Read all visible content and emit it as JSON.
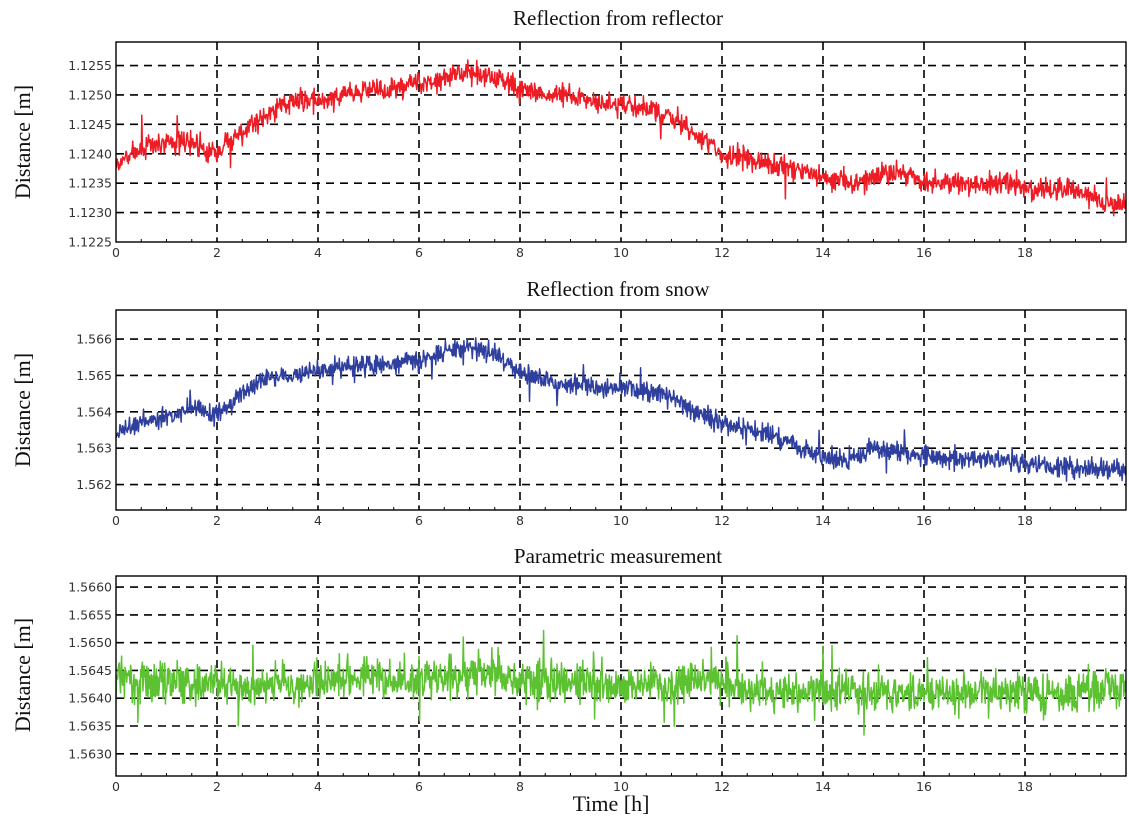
{
  "xlabel": "Time [h]",
  "chart_data": [
    {
      "type": "line",
      "title": "Reflection from reflector",
      "ylabel": "Distance [m]",
      "xlim": [
        0,
        20
      ],
      "ylim": [
        1.1225,
        1.1259
      ],
      "xticks": [
        0,
        2,
        4,
        6,
        8,
        10,
        12,
        14,
        16,
        18
      ],
      "xtick_labels": [
        "0",
        "2",
        "4",
        "6",
        "8",
        "10",
        "12",
        "14",
        "16",
        "18"
      ],
      "yticks": [
        1.1225,
        1.123,
        1.1235,
        1.124,
        1.1245,
        1.125,
        1.1255
      ],
      "ytick_labels": [
        "1.1225",
        "1.1230",
        "1.1235",
        "1.1240",
        "1.1245",
        "1.1250",
        "1.1255"
      ],
      "grid": true,
      "color": "#ee1c25",
      "series": [
        {
          "x": [
            0,
            0.5,
            1,
            1.5,
            2,
            2.5,
            3,
            3.5,
            4,
            4.5,
            5,
            5.5,
            6,
            6.5,
            7,
            7.5,
            8,
            8.5,
            9,
            9.5,
            10,
            10.5,
            11,
            11.5,
            12,
            12.5,
            13,
            13.5,
            14,
            14.5,
            15,
            15.5,
            16,
            16.5,
            17,
            17.5,
            18,
            18.5,
            19,
            19.5,
            20
          ],
          "values": [
            1.1238,
            1.1241,
            1.1242,
            1.1242,
            1.124,
            1.1244,
            1.1247,
            1.1249,
            1.1249,
            1.125,
            1.1251,
            1.1251,
            1.1252,
            1.1253,
            1.1254,
            1.1253,
            1.1251,
            1.125,
            1.125,
            1.1249,
            1.1248,
            1.1248,
            1.1246,
            1.1243,
            1.124,
            1.1239,
            1.1238,
            1.1237,
            1.1236,
            1.1235,
            1.1236,
            1.1237,
            1.1235,
            1.1235,
            1.1235,
            1.1235,
            1.1234,
            1.1234,
            1.1234,
            1.1232,
            1.1231
          ]
        }
      ]
    },
    {
      "type": "line",
      "title": "Reflection from snow",
      "ylabel": "Distance [m]",
      "xlim": [
        0,
        20
      ],
      "ylim": [
        1.5613,
        1.5668
      ],
      "xticks": [
        0,
        2,
        4,
        6,
        8,
        10,
        12,
        14,
        16,
        18
      ],
      "xtick_labels": [
        "0",
        "2",
        "4",
        "6",
        "8",
        "10",
        "12",
        "14",
        "16",
        "18"
      ],
      "yticks": [
        1.562,
        1.563,
        1.564,
        1.565,
        1.566
      ],
      "ytick_labels": [
        "1.562",
        "1.563",
        "1.564",
        "1.565",
        "1.566"
      ],
      "grid": true,
      "color": "#2e3f9e",
      "series": [
        {
          "x": [
            0,
            0.5,
            1,
            1.5,
            2,
            2.5,
            3,
            3.5,
            4,
            4.5,
            5,
            5.5,
            6,
            6.5,
            7,
            7.5,
            8,
            8.5,
            9,
            9.5,
            10,
            10.5,
            11,
            11.5,
            12,
            12.5,
            13,
            13.5,
            14,
            14.5,
            15,
            15.5,
            16,
            16.5,
            17,
            17.5,
            18,
            18.5,
            19,
            19.5,
            20
          ],
          "values": [
            1.5634,
            1.5637,
            1.5639,
            1.5641,
            1.5639,
            1.5645,
            1.5649,
            1.565,
            1.5651,
            1.5653,
            1.5653,
            1.5653,
            1.5654,
            1.5656,
            1.5658,
            1.5656,
            1.5651,
            1.5648,
            1.5648,
            1.5647,
            1.5647,
            1.5646,
            1.5644,
            1.564,
            1.5637,
            1.5635,
            1.5634,
            1.563,
            1.5628,
            1.5627,
            1.563,
            1.5629,
            1.5628,
            1.5627,
            1.5627,
            1.5627,
            1.5626,
            1.5625,
            1.5625,
            1.5624,
            1.5624
          ]
        }
      ]
    },
    {
      "type": "line",
      "title": "Parametric measurement",
      "ylabel": "Distance [m]",
      "xlabel": "Time [h]",
      "xlim": [
        0,
        20
      ],
      "ylim": [
        1.5626,
        1.5662
      ],
      "xticks": [
        0,
        2,
        4,
        6,
        8,
        10,
        12,
        14,
        16,
        18
      ],
      "xtick_labels": [
        "0",
        "2",
        "4",
        "6",
        "8",
        "10",
        "12",
        "14",
        "16",
        "18"
      ],
      "yticks": [
        1.563,
        1.5635,
        1.564,
        1.5645,
        1.565,
        1.5655,
        1.566
      ],
      "ytick_labels": [
        "1.5630",
        "1.5635",
        "1.5640",
        "1.5645",
        "1.5650",
        "1.5655",
        "1.5660"
      ],
      "grid": true,
      "color": "#5cc232",
      "series": [
        {
          "x": [
            0,
            0.5,
            1,
            1.5,
            2,
            2.5,
            3,
            3.5,
            4,
            4.5,
            5,
            5.5,
            6,
            6.5,
            7,
            7.5,
            8,
            8.5,
            9,
            9.5,
            10,
            10.5,
            11,
            11.5,
            12,
            12.5,
            13,
            13.5,
            14,
            14.5,
            15,
            15.5,
            16,
            16.5,
            17,
            17.5,
            18,
            18.5,
            19,
            19.5,
            20
          ],
          "values": [
            1.5644,
            1.5643,
            1.5643,
            1.5643,
            1.5643,
            1.5642,
            1.5643,
            1.5642,
            1.5643,
            1.5644,
            1.5644,
            1.5643,
            1.5643,
            1.5644,
            1.5644,
            1.5645,
            1.5643,
            1.5643,
            1.5643,
            1.5643,
            1.5642,
            1.5643,
            1.5642,
            1.5643,
            1.5643,
            1.5642,
            1.5641,
            1.5641,
            1.5641,
            1.5641,
            1.5641,
            1.5641,
            1.5641,
            1.5641,
            1.5641,
            1.5642,
            1.5641,
            1.5641,
            1.5641,
            1.5642,
            1.5642
          ]
        }
      ]
    }
  ]
}
